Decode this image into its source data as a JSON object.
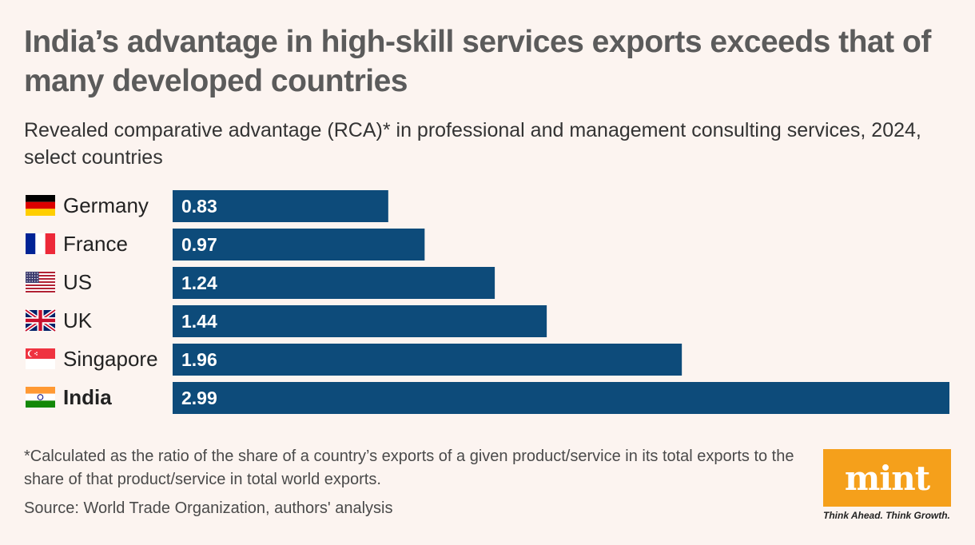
{
  "title": "India’s advantage in high-skill services exports exceeds that of many developed countries",
  "subtitle": "Revealed comparative advantage (RCA)* in professional and management consulting services, 2024, select countries",
  "footnote": "*Calculated as the ratio of the share of a country’s exports of a given product/service in its total exports to the share of that product/service in total world exports.",
  "source": "Source: World Trade Organization, authors' analysis",
  "logo": {
    "name": "mint",
    "tagline": "Think Ahead. Think Growth.",
    "color": "#f5a01b"
  },
  "colors": {
    "bar": "#0d4b7a",
    "bar_text": "#ffffff",
    "background": "#fcf4f0"
  },
  "chart_data": {
    "type": "bar",
    "orientation": "horizontal",
    "categories": [
      "Germany",
      "France",
      "US",
      "UK",
      "Singapore",
      "India"
    ],
    "values": [
      0.83,
      0.97,
      1.24,
      1.44,
      1.96,
      2.99
    ],
    "value_labels": [
      "0.83",
      "0.97",
      "1.24",
      "1.44",
      "1.96",
      "2.99"
    ],
    "highlight": "India",
    "flag_icons": [
      "germany-flag-icon",
      "france-flag-icon",
      "us-flag-icon",
      "uk-flag-icon",
      "singapore-flag-icon",
      "india-flag-icon"
    ],
    "xlim": [
      0,
      2.99
    ],
    "grid": false,
    "legend": "none",
    "title": "",
    "xlabel": "",
    "ylabel": ""
  }
}
